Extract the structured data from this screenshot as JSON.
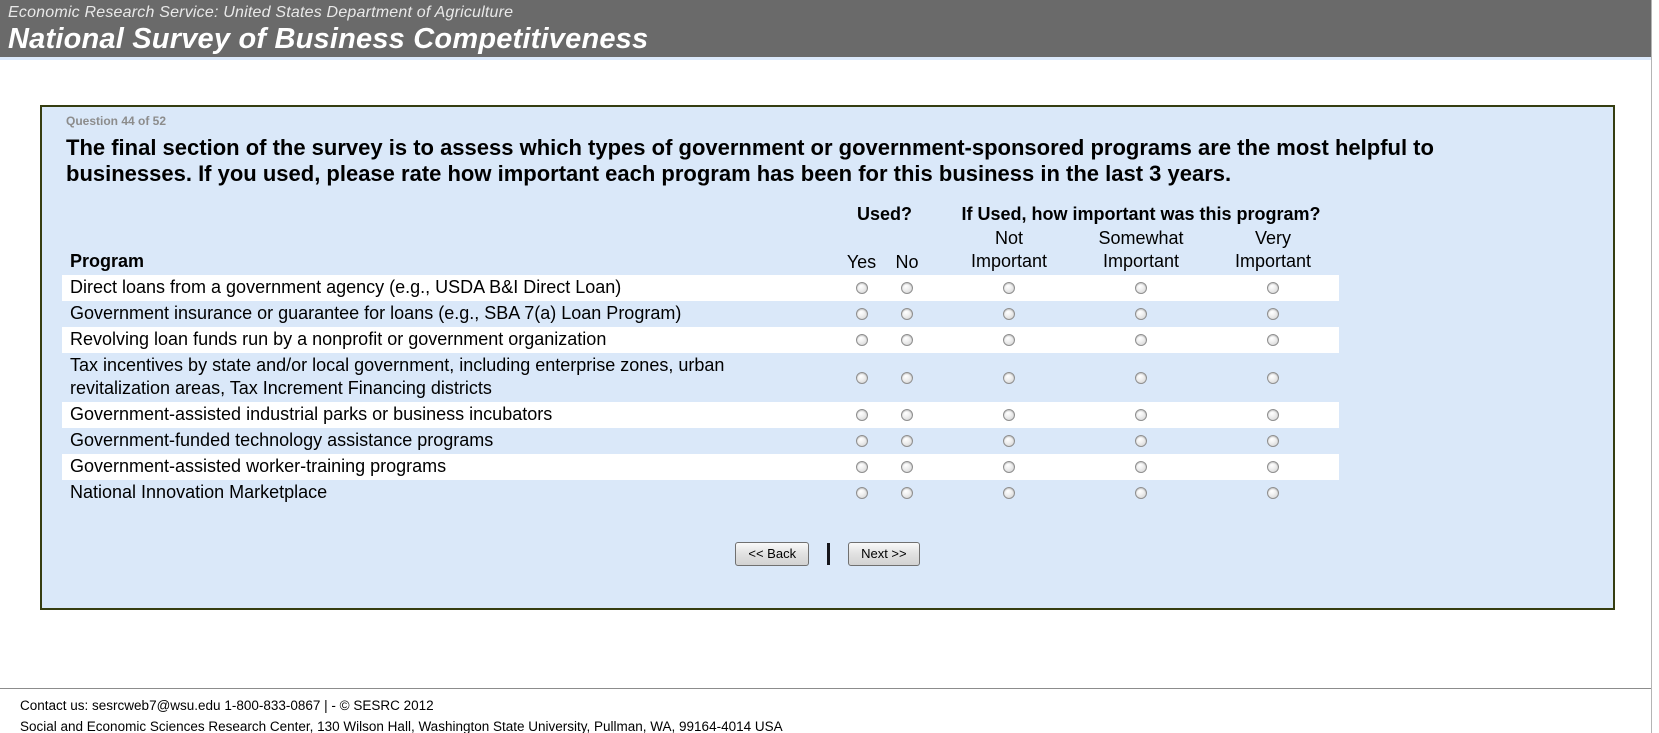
{
  "header": {
    "agency": "Economic Research Service: United States Department of Agriculture",
    "title": "National Survey of Business Competitiveness"
  },
  "question": {
    "number_label": "Question 44 of 52",
    "text": "The final section of the survey is to assess which types of government or government-sponsored programs are the most helpful to businesses. If you used, please rate how important each program has been for this business in the last 3 years."
  },
  "table": {
    "program_header": "Program",
    "group_headers": {
      "used": "Used?",
      "importance": "If Used, how important was this program?"
    },
    "columns": {
      "yes": "Yes",
      "no": "No",
      "not_important": "Not Important",
      "somewhat_important": "Somewhat Important",
      "very_important": "Very Important"
    },
    "rows": [
      {
        "program": "Direct loans from a government agency (e.g., USDA B&I Direct Loan)"
      },
      {
        "program": "Government insurance or guarantee for loans (e.g., SBA 7(a) Loan Program)"
      },
      {
        "program": "Revolving loan funds run by a nonprofit or government organization"
      },
      {
        "program": "Tax incentives by state and/or local government, including enterprise zones, urban revitalization areas, Tax Increment Financing districts"
      },
      {
        "program": "Government-assisted industrial parks or business incubators"
      },
      {
        "program": "Government-funded technology assistance programs"
      },
      {
        "program": "Government-assisted worker-training programs"
      },
      {
        "program": "National Innovation Marketplace"
      }
    ],
    "radio_state": "all-unselected"
  },
  "buttons": {
    "back": "<< Back",
    "divider": "|",
    "next": "Next >>"
  },
  "footer": {
    "contact_prefix": "Contact us: ",
    "email": "sesrcweb7@wsu.edu",
    "contact_suffix": " 1-800-833-0867 | - © SESRC 2012",
    "address": "Social and Economic Sciences Research Center, 130 Wilson Hall, Washington State University, Pullman, WA, 99164-4014 USA"
  },
  "colors": {
    "banner_bg": "#6a6a6a",
    "panel_bg": "#dae8f9",
    "panel_border": "#353d11",
    "row_alt_bg": "#ffffff"
  }
}
